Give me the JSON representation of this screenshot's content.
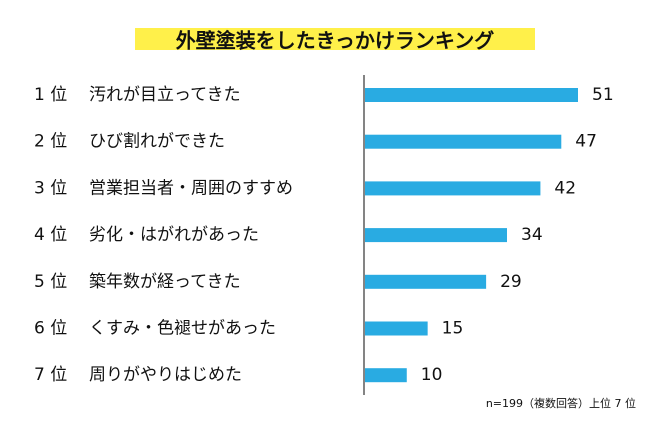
{
  "chart_data": {
    "type": "bar",
    "orientation": "horizontal",
    "title": "外壁塗装をしたきっかけランキング",
    "ranks": [
      "1 位",
      "2 位",
      "3 位",
      "4 位",
      "5 位",
      "6 位",
      "7 位"
    ],
    "categories": [
      "汚れが目立ってきた",
      "ひび割れができた",
      "営業担当者・周囲のすすめ",
      "劣化・はがれがあった",
      "築年数が経ってきた",
      "くすみ・色褪せがあった",
      "周りがやりはじめた"
    ],
    "values": [
      51,
      47,
      42,
      34,
      29,
      15,
      10
    ],
    "note": "n=199（複数回答）上位 7 位",
    "grid": false,
    "bar_color": "#29abe2",
    "title_highlight_color": "#fff04a"
  }
}
